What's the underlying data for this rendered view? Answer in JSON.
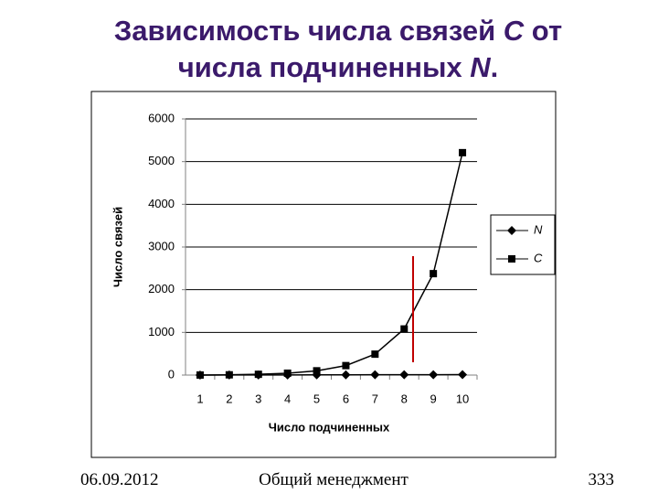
{
  "title_lines": [
    [
      "Зависимость числа связей ",
      "C",
      " от"
    ],
    [
      "числа подчиненных ",
      "N",
      "."
    ]
  ],
  "chart_data": {
    "type": "line",
    "x_label": "Число подчиненных",
    "y_label": "Число связей",
    "categories": [
      "1",
      "2",
      "3",
      "4",
      "5",
      "6",
      "7",
      "8",
      "9",
      "10"
    ],
    "series": [
      {
        "name": "N",
        "color": "#000000",
        "marker": "diamond",
        "values": [
          1,
          2,
          3,
          4,
          5,
          6,
          7,
          8,
          9,
          10
        ]
      },
      {
        "name": "C",
        "color": "#000000",
        "marker": "square",
        "values": [
          1,
          6,
          18,
          44,
          100,
          222,
          490,
          1080,
          2376,
          5210
        ]
      }
    ],
    "ylim": [
      0,
      6000
    ],
    "yticks": [
      0,
      1000,
      2000,
      3000,
      4000,
      5000,
      6000
    ],
    "grid": true,
    "legend": "right"
  },
  "footer": {
    "date": "06.09.2012",
    "course": "Общий менеджмент",
    "page": "333"
  }
}
